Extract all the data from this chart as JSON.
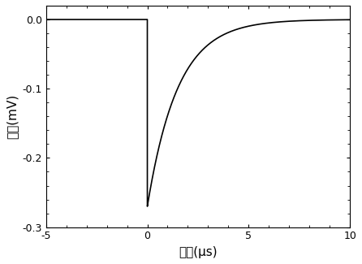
{
  "xlim": [
    -5,
    10
  ],
  "ylim": [
    -0.3,
    0.02
  ],
  "xticks": [
    -5,
    0,
    5,
    10
  ],
  "yticks": [
    0.0,
    -0.1,
    -0.2,
    -0.3
  ],
  "xlabel": "时间(μs)",
  "ylabel": "幅度(mV)",
  "line_color": "#000000",
  "line_width": 1.2,
  "peak_value": -0.27,
  "decay_tau": 1.5,
  "background_color": "#ffffff",
  "figure_facecolor": "#ffffff",
  "font_size_label": 11,
  "font_size_tick": 9,
  "spine_linewidth": 0.8
}
